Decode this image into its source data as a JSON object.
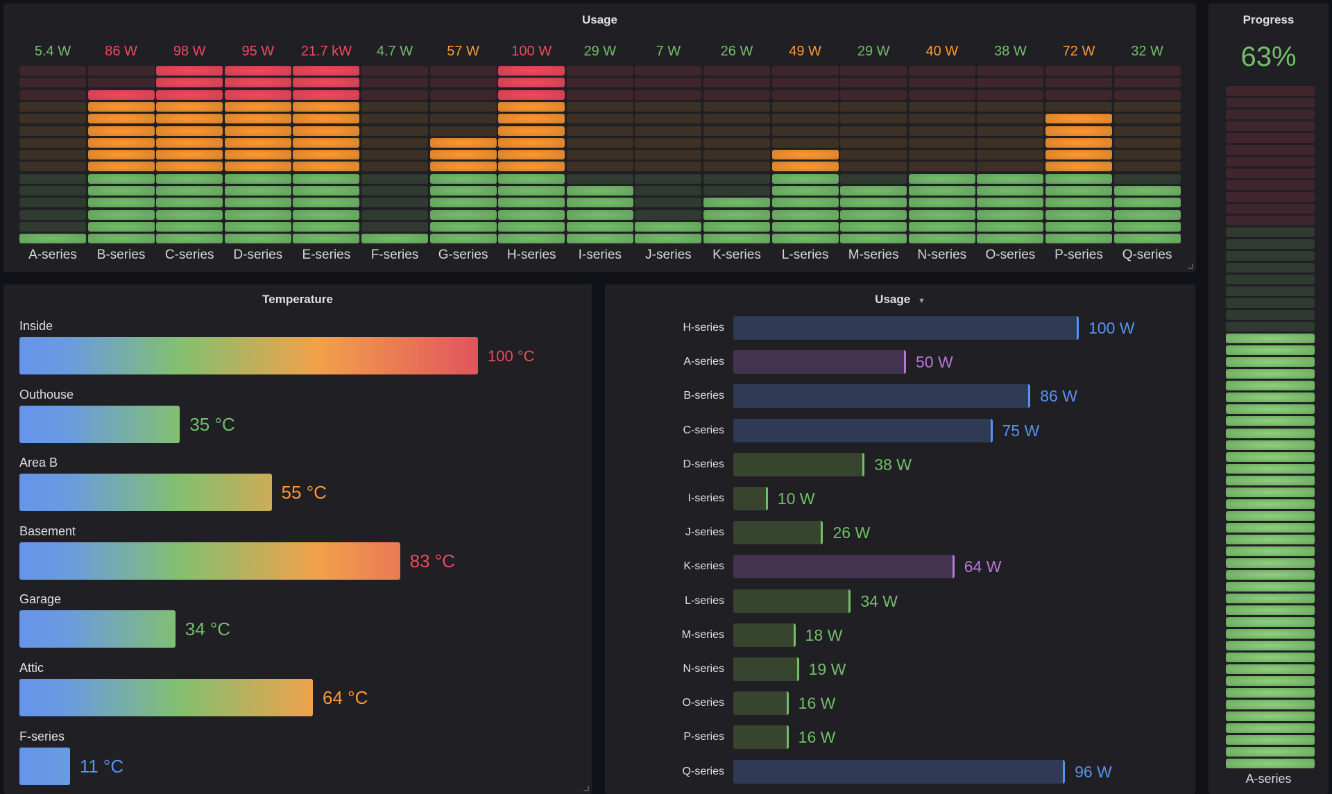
{
  "colors": {
    "green": "#73bf69",
    "orange": "#ff9830",
    "red": "#f2495c",
    "blue": "#5794f2",
    "purple": "#b877d9",
    "panel": "#1f1f24",
    "background": "#111217"
  },
  "top_panel": {
    "title": "Usage",
    "max": 100,
    "segments": 15,
    "thresholds": {
      "orange": 40,
      "red": 80
    },
    "items": [
      {
        "label": "A-series",
        "value": 5.4,
        "text": "5.4 W",
        "level": "green"
      },
      {
        "label": "B-series",
        "value": 86,
        "text": "86 W",
        "level": "red"
      },
      {
        "label": "C-series",
        "value": 98,
        "text": "98 W",
        "level": "red"
      },
      {
        "label": "D-series",
        "value": 95,
        "text": "95 W",
        "level": "red"
      },
      {
        "label": "E-series",
        "value": 21700,
        "text": "21.7 kW",
        "level": "red"
      },
      {
        "label": "F-series",
        "value": 4.7,
        "text": "4.7 W",
        "level": "green"
      },
      {
        "label": "G-series",
        "value": 57,
        "text": "57 W",
        "level": "orange"
      },
      {
        "label": "H-series",
        "value": 100,
        "text": "100 W",
        "level": "red"
      },
      {
        "label": "I-series",
        "value": 29,
        "text": "29 W",
        "level": "green"
      },
      {
        "label": "J-series",
        "value": 7,
        "text": "7 W",
        "level": "green"
      },
      {
        "label": "K-series",
        "value": 26,
        "text": "26 W",
        "level": "green"
      },
      {
        "label": "L-series",
        "value": 49,
        "text": "49 W",
        "level": "orange"
      },
      {
        "label": "M-series",
        "value": 29,
        "text": "29 W",
        "level": "green"
      },
      {
        "label": "N-series",
        "value": 40,
        "text": "40 W",
        "level": "orange"
      },
      {
        "label": "O-series",
        "value": 38,
        "text": "38 W",
        "level": "green"
      },
      {
        "label": "P-series",
        "value": 72,
        "text": "72 W",
        "level": "orange"
      },
      {
        "label": "Q-series",
        "value": 32,
        "text": "32 W",
        "level": "green"
      }
    ]
  },
  "progress_panel": {
    "title": "Progress",
    "value_text": "63%",
    "value": 63,
    "label": "A-series",
    "segments": 58
  },
  "temperature_panel": {
    "title": "Temperature",
    "max": 100,
    "items": [
      {
        "label": "Inside",
        "value": 100,
        "text": "100 °C",
        "level": "red"
      },
      {
        "label": "Outhouse",
        "value": 35,
        "text": "35 °C",
        "level": "green"
      },
      {
        "label": "Area B",
        "value": 55,
        "text": "55 °C",
        "level": "orange"
      },
      {
        "label": "Basement",
        "value": 83,
        "text": "83 °C",
        "level": "red"
      },
      {
        "label": "Garage",
        "value": 34,
        "text": "34 °C",
        "level": "green"
      },
      {
        "label": "Attic",
        "value": 64,
        "text": "64 °C",
        "level": "orange"
      },
      {
        "label": "F-series",
        "value": 11,
        "text": "11 °C",
        "level": "blue"
      }
    ]
  },
  "usage_panel": {
    "title": "Usage",
    "menu_icon": "caret-down-icon",
    "max": 100,
    "items": [
      {
        "label": "H-series",
        "value": 100,
        "text": "100 W",
        "level": "blue"
      },
      {
        "label": "A-series",
        "value": 50,
        "text": "50 W",
        "level": "purple"
      },
      {
        "label": "B-series",
        "value": 86,
        "text": "86 W",
        "level": "blue"
      },
      {
        "label": "C-series",
        "value": 75,
        "text": "75 W",
        "level": "blue"
      },
      {
        "label": "D-series",
        "value": 38,
        "text": "38 W",
        "level": "green"
      },
      {
        "label": "I-series",
        "value": 10,
        "text": "10 W",
        "level": "green"
      },
      {
        "label": "J-series",
        "value": 26,
        "text": "26 W",
        "level": "green"
      },
      {
        "label": "K-series",
        "value": 64,
        "text": "64 W",
        "level": "purple"
      },
      {
        "label": "L-series",
        "value": 34,
        "text": "34 W",
        "level": "green"
      },
      {
        "label": "M-series",
        "value": 18,
        "text": "18 W",
        "level": "green"
      },
      {
        "label": "N-series",
        "value": 19,
        "text": "19 W",
        "level": "green"
      },
      {
        "label": "O-series",
        "value": 16,
        "text": "16 W",
        "level": "green"
      },
      {
        "label": "P-series",
        "value": 16,
        "text": "16 W",
        "level": "green"
      },
      {
        "label": "Q-series",
        "value": 96,
        "text": "96 W",
        "level": "blue"
      }
    ]
  }
}
